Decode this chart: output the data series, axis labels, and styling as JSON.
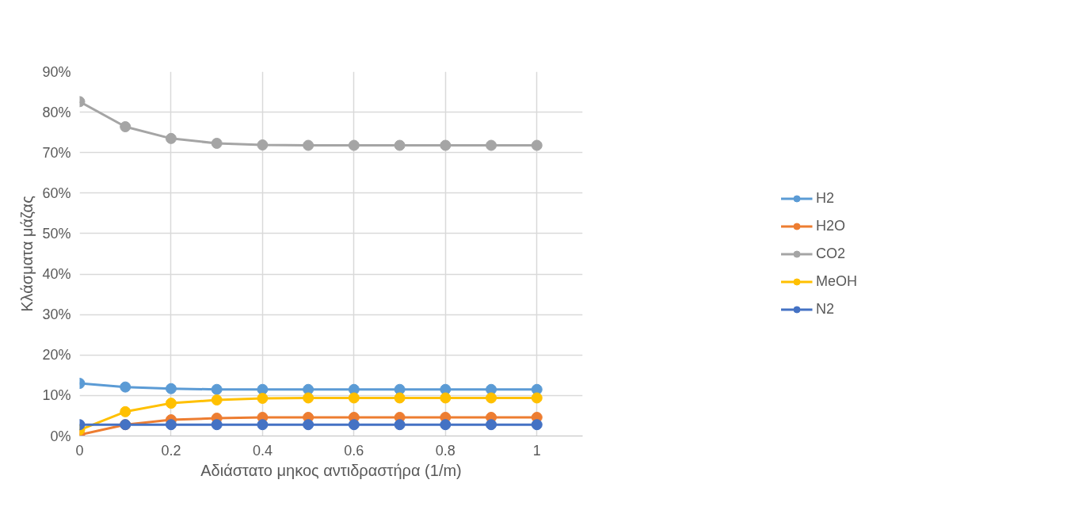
{
  "chart_data": {
    "type": "line",
    "xlabel": "Αδιάστατο μηκος αντιδραστήρα (1/m)",
    "ylabel": "Κλάσματα μάζας",
    "x": [
      0,
      0.1,
      0.2,
      0.3,
      0.4,
      0.5,
      0.6,
      0.7,
      0.8,
      0.9,
      1
    ],
    "series": [
      {
        "name": "H2",
        "color": "#5b9bd5",
        "values": [
          13.0,
          12.1,
          11.7,
          11.5,
          11.5,
          11.5,
          11.5,
          11.5,
          11.5,
          11.5,
          11.5
        ]
      },
      {
        "name": "H2O",
        "color": "#ed7d31",
        "values": [
          0.3,
          2.8,
          4.0,
          4.4,
          4.6,
          4.6,
          4.6,
          4.6,
          4.6,
          4.6,
          4.6
        ]
      },
      {
        "name": "CO2",
        "color": "#a5a5a5",
        "values": [
          82.6,
          76.4,
          73.5,
          72.3,
          71.9,
          71.8,
          71.8,
          71.8,
          71.8,
          71.8,
          71.8
        ]
      },
      {
        "name": "MeOH",
        "color": "#ffc000",
        "values": [
          1.5,
          6.0,
          8.1,
          8.9,
          9.3,
          9.4,
          9.4,
          9.4,
          9.4,
          9.4,
          9.4
        ]
      },
      {
        "name": "N2",
        "color": "#4472c4",
        "values": [
          2.8,
          2.8,
          2.8,
          2.8,
          2.8,
          2.8,
          2.8,
          2.8,
          2.8,
          2.8,
          2.8
        ]
      }
    ],
    "xlim": [
      0,
      1.1
    ],
    "xticks": [
      0,
      0.2,
      0.4,
      0.6,
      0.8,
      1
    ],
    "ylim": [
      0,
      90
    ],
    "yticks": [
      {
        "value": 0,
        "label": "0%"
      },
      {
        "value": 10,
        "label": "10%"
      },
      {
        "value": 20,
        "label": "20%"
      },
      {
        "value": 30,
        "label": "30%"
      },
      {
        "value": 40,
        "label": "40%"
      },
      {
        "value": 50,
        "label": "50%"
      },
      {
        "value": 60,
        "label": "60%"
      },
      {
        "value": 70,
        "label": "70%"
      },
      {
        "value": 80,
        "label": "80%"
      },
      {
        "value": 90,
        "label": "90%"
      }
    ],
    "grid": true,
    "legend": "right",
    "marker": "circle",
    "line_style": "solid"
  }
}
